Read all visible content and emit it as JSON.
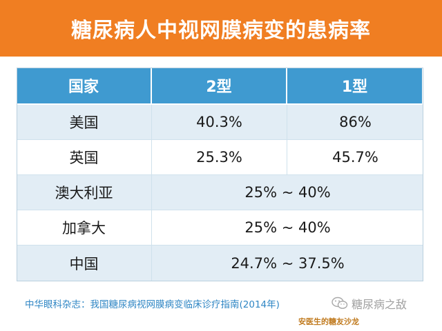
{
  "title": "糖尿病人中视网膜病变的患病率",
  "chart_data": {
    "type": "table",
    "columns": [
      "国家",
      "2型",
      "1型"
    ],
    "rows": [
      {
        "country": "美国",
        "type2": "40.3%",
        "type1": "86%"
      },
      {
        "country": "英国",
        "type2": "25.3%",
        "type1": "45.7%"
      },
      {
        "country": "澳大利亚",
        "combined": "25% ~ 40%"
      },
      {
        "country": "加拿大",
        "combined": "25% ~ 40%"
      },
      {
        "country": "中国",
        "combined": "24.7% ~ 37.5%"
      }
    ]
  },
  "source": "中华眼科杂志：我国糖尿病视网膜病变临床诊疗指南(2014年)",
  "watermark": {
    "icon": "wechat-icon",
    "account": "糖尿病之敌",
    "signature": "安医生的糖友沙龙"
  },
  "colors": {
    "title_bar": "#f07e22",
    "header": "#3f9ad0",
    "row_stripe": "#e2edf5",
    "source_text": "#2f86c4"
  }
}
